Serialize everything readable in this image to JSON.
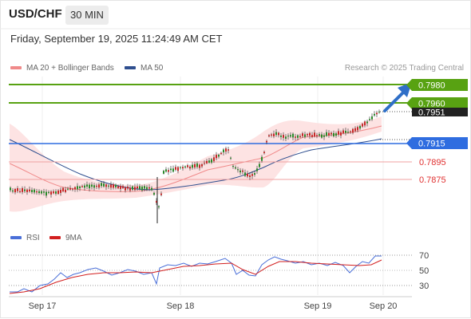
{
  "header": {
    "pair": "USD/CHF",
    "timeframe": "30 MIN"
  },
  "datetime": "Friday, September 19, 2025 11:24:49 AM CET",
  "legend": {
    "ma20": {
      "label": "MA 20 + Bollinger Bands",
      "color": "#f08a8a"
    },
    "ma50": {
      "label": "MA 50",
      "color": "#2f4f8f"
    }
  },
  "credit": "Research © 2025 Trading Central",
  "rsi_legend": {
    "rsi": {
      "label": "RSI",
      "color": "#4a6fd8"
    },
    "ma": {
      "label": "9MA",
      "color": "#d21f1f"
    }
  },
  "levels": [
    {
      "label": "0.7980",
      "kind": "target",
      "color": "#58a212"
    },
    {
      "label": "0.7960",
      "kind": "target",
      "color": "#58a212"
    },
    {
      "label": "0.7951",
      "kind": "last",
      "color": "#222222"
    },
    {
      "label": "0.7915",
      "kind": "pivot",
      "color": "#2f6de0"
    },
    {
      "label": "0.7895",
      "kind": "support",
      "color": "#e03030"
    },
    {
      "label": "0.7875",
      "kind": "support",
      "color": "#e03030"
    }
  ],
  "rsi_ticks": [
    "70",
    "50",
    "30"
  ],
  "x_labels": [
    "Sep 17",
    "Sep 18",
    "Sep 19",
    "Sep 20"
  ],
  "colors": {
    "up": "#2a8a2a",
    "down": "#c62828",
    "band": "#fde0e0"
  }
}
